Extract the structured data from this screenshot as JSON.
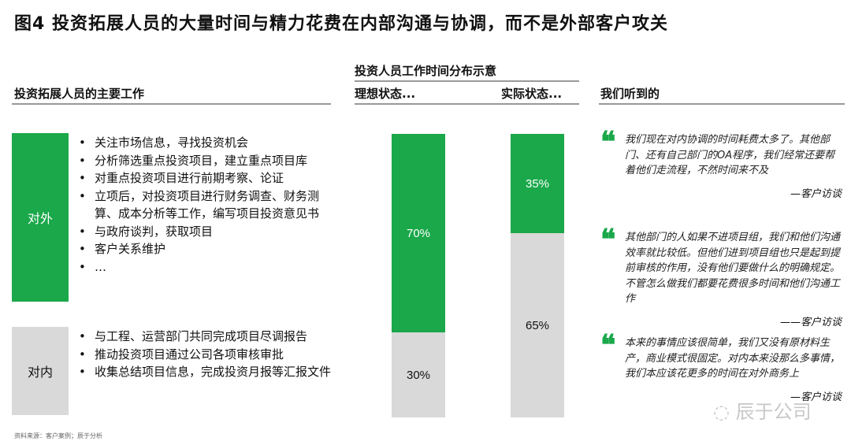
{
  "title": "图4 投资拓展人员的大量时间与精力花费在内部沟通与协调，而不是外部客户攻关",
  "left": {
    "header": "投资拓展人员的主要工作",
    "groups": [
      {
        "label": "对外",
        "color": "#1aa84a",
        "items": [
          "关注市场信息，寻找投资机会",
          "分析筛选重点投资项目，建立重点项目库",
          "对重点投资项目进行前期考察、论证",
          "立项后，对投资项目进行财务调查、财务测算、成本分析等工作，编写项目投资意见书",
          "与政府谈判，获取项目",
          "客户关系维护",
          "…"
        ]
      },
      {
        "label": "对内",
        "color": "#d9d9d9",
        "items": [
          "与工程、运营部门共同完成项目尽调报告",
          "推动投资项目通过公司各项审核审批",
          "收集总结项目信息，完成投资月报等汇报文件"
        ]
      }
    ]
  },
  "chart_data": {
    "type": "bar",
    "stacked": true,
    "title": "投资人员工作时间分布示意",
    "categories": [
      "理想状态...",
      "实际状态..."
    ],
    "series": [
      {
        "name": "对外",
        "color": "#1aa84a",
        "values": [
          70,
          35
        ]
      },
      {
        "name": "对内",
        "color": "#d9d9d9",
        "values": [
          30,
          65
        ]
      }
    ],
    "labels": [
      [
        "70%",
        "30%"
      ],
      [
        "35%",
        "65%"
      ]
    ],
    "ylim": [
      0,
      100
    ]
  },
  "right": {
    "header": "我们听到的",
    "quotes": [
      {
        "text": "我们现在对内协调的时间耗费太多了。其他部门、还有自己部门的OA程序，我们经常还要帮着他们走流程，不然时间来不及",
        "attribution": "—客户访谈"
      },
      {
        "text": "其他部门的人如果不进项目组，我们和他们沟通效率就比较低。但他们进到项目组也只是起到提前审核的作用，没有他们要做什么的明确规定。不管怎么做我们都要花费很多时间和他们沟通工作",
        "attribution": "——客户访谈"
      },
      {
        "text": "本来的事情应该很简单，我们又没有原材料生产，商业模式很固定。对内本来没那么多事情，我们本应该花更多的时间在对外商务上",
        "attribution": "—客户访谈"
      }
    ]
  },
  "footer": "资料来源：客户案例；辰于分析",
  "watermark": "辰于公司"
}
